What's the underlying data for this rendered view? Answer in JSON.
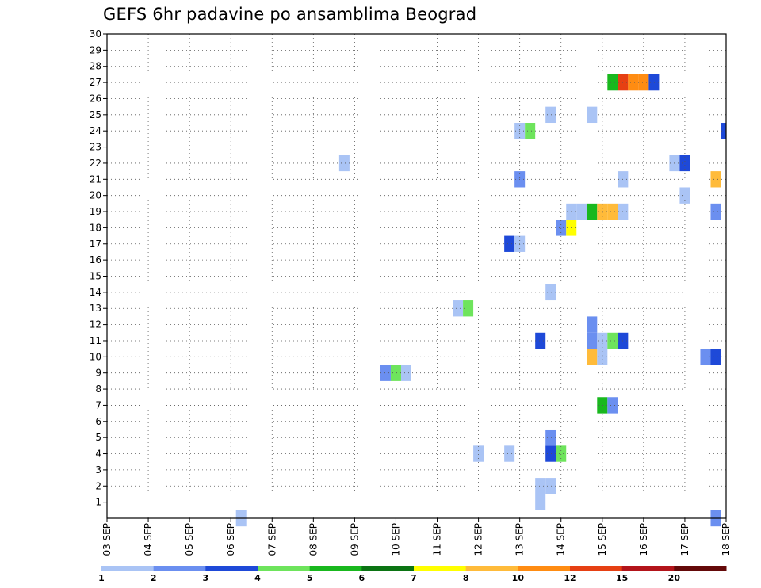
{
  "chart_data": {
    "type": "heatmap",
    "title": "GEFS 6hr padavine po ansamblima Beograd",
    "xlabel": "",
    "ylabel": "",
    "x_tick_labels": [
      "03 SEP",
      "04 SEP",
      "05 SEP",
      "06 SEP",
      "07 SEP",
      "08 SEP",
      "09 SEP",
      "10 SEP",
      "11 SEP",
      "12 SEP",
      "13 SEP",
      "14 SEP",
      "15 SEP",
      "16 SEP",
      "17 SEP",
      "18 SEP"
    ],
    "y_tick_labels": [
      "1",
      "2",
      "3",
      "4",
      "5",
      "6",
      "7",
      "8",
      "9",
      "10",
      "11",
      "12",
      "13",
      "14",
      "15",
      "16",
      "17",
      "18",
      "19",
      "20",
      "21",
      "22",
      "23",
      "24",
      "25",
      "26",
      "27",
      "28",
      "29",
      "30"
    ],
    "xlim": [
      0,
      60
    ],
    "ylim": [
      0,
      30
    ],
    "x_step_hours": 6,
    "grid": true,
    "colorbar": {
      "boundary_labels": [
        "1",
        "2",
        "3",
        "4",
        "5",
        "6",
        "7",
        "8",
        "10",
        "12",
        "15",
        "20"
      ],
      "colors": [
        "#aac4f5",
        "#6b8ff0",
        "#1e49d8",
        "#6ee45c",
        "#19b81e",
        "#0b7413",
        "#ffff00",
        "#ffbb3a",
        "#ff8c12",
        "#e64013",
        "#b3141a",
        "#640909"
      ]
    },
    "cells": [
      {
        "x": 13,
        "y": 0,
        "level": 1
      },
      {
        "x": 59,
        "y": 0,
        "level": 2
      },
      {
        "x": 42,
        "y": 1,
        "level": 1
      },
      {
        "x": 42,
        "y": 2,
        "level": 1
      },
      {
        "x": 43,
        "y": 2,
        "level": 1
      },
      {
        "x": 36,
        "y": 4,
        "level": 1
      },
      {
        "x": 39,
        "y": 4,
        "level": 1
      },
      {
        "x": 43,
        "y": 4,
        "level": 3
      },
      {
        "x": 44,
        "y": 4,
        "level": 4
      },
      {
        "x": 43,
        "y": 5,
        "level": 2
      },
      {
        "x": 48,
        "y": 7,
        "level": 5
      },
      {
        "x": 49,
        "y": 7,
        "level": 2
      },
      {
        "x": 27,
        "y": 9,
        "level": 2
      },
      {
        "x": 28,
        "y": 9,
        "level": 4
      },
      {
        "x": 29,
        "y": 9,
        "level": 1
      },
      {
        "x": 47,
        "y": 10,
        "level": 8
      },
      {
        "x": 48,
        "y": 10,
        "level": 1
      },
      {
        "x": 58,
        "y": 10,
        "level": 2
      },
      {
        "x": 59,
        "y": 10,
        "level": 3
      },
      {
        "x": 42,
        "y": 11,
        "level": 3
      },
      {
        "x": 47,
        "y": 11,
        "level": 2
      },
      {
        "x": 48,
        "y": 11,
        "level": 1
      },
      {
        "x": 49,
        "y": 11,
        "level": 4
      },
      {
        "x": 50,
        "y": 11,
        "level": 3
      },
      {
        "x": 47,
        "y": 12,
        "level": 2
      },
      {
        "x": 34,
        "y": 13,
        "level": 1
      },
      {
        "x": 35,
        "y": 13,
        "level": 4
      },
      {
        "x": 43,
        "y": 14,
        "level": 1
      },
      {
        "x": 39,
        "y": 17,
        "level": 3
      },
      {
        "x": 40,
        "y": 17,
        "level": 1
      },
      {
        "x": 44,
        "y": 18,
        "level": 2
      },
      {
        "x": 45,
        "y": 18,
        "level": 7
      },
      {
        "x": 45,
        "y": 19,
        "level": 1
      },
      {
        "x": 46,
        "y": 19,
        "level": 1
      },
      {
        "x": 47,
        "y": 19,
        "level": 5
      },
      {
        "x": 48,
        "y": 19,
        "level": 8
      },
      {
        "x": 49,
        "y": 19,
        "level": 8
      },
      {
        "x": 50,
        "y": 19,
        "level": 1
      },
      {
        "x": 59,
        "y": 19,
        "level": 2
      },
      {
        "x": 56,
        "y": 20,
        "level": 1
      },
      {
        "x": 40,
        "y": 21,
        "level": 2
      },
      {
        "x": 50,
        "y": 21,
        "level": 1
      },
      {
        "x": 59,
        "y": 21,
        "level": 8
      },
      {
        "x": 23,
        "y": 22,
        "level": 1
      },
      {
        "x": 55,
        "y": 22,
        "level": 1
      },
      {
        "x": 56,
        "y": 22,
        "level": 3
      },
      {
        "x": 40,
        "y": 24,
        "level": 1
      },
      {
        "x": 41,
        "y": 24,
        "level": 4
      },
      {
        "x": 60,
        "y": 24,
        "level": 3
      },
      {
        "x": 43,
        "y": 25,
        "level": 1
      },
      {
        "x": 47,
        "y": 25,
        "level": 1
      },
      {
        "x": 49,
        "y": 27,
        "level": 5
      },
      {
        "x": 50,
        "y": 27,
        "level": 10
      },
      {
        "x": 51,
        "y": 27,
        "level": 9
      },
      {
        "x": 52,
        "y": 27,
        "level": 9
      },
      {
        "x": 53,
        "y": 27,
        "level": 3
      }
    ]
  }
}
